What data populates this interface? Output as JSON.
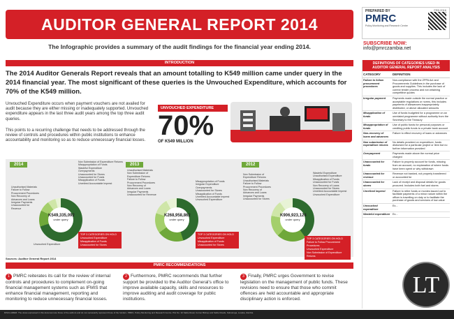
{
  "header": {
    "title": "AUDITOR GENERAL REPORT 2014 INFOGRAPHIC",
    "subtitle": "The Infographic provides a summary of the audit findings for the financial year ending 2014."
  },
  "logo": {
    "prepared_by": "PREPARED BY",
    "name": "PMRC",
    "sub": "Policy Monitoring and Research Centre",
    "date": "FEB 2016"
  },
  "subscribe": {
    "label": "SUBSCRIBE NOW:",
    "email": "info@pmrczambia.net"
  },
  "intro": {
    "heading": "INTRODUCTION",
    "lead": "The 2014 Auditor Generals Report reveals that an amount totalling to K549 million came under query in the 2014 financial year. The most significant of these queries is the Unvouched Expenditure, which accounts for 70% of the K549 million.",
    "para1": "Unvouched Expenditure occurs when payment vouchers are not availed for audit because they are either missing or inadequately supported. Unvouched expenditure appears in the last three audit years among the top three audit queries.",
    "para2": "This points to a recurring challenge that needs to be addressed through the review of controls and procedures within public institutions to enhance accountability and monitoring so as to reduce unnecessary financial losses."
  },
  "highlight": {
    "label": "UNVOUCHED EXPENDITURE",
    "percent": "70%",
    "of": "OF K549 MILLION"
  },
  "charts": [
    {
      "year": "2014",
      "total": "K549,335,092",
      "caption": "under query",
      "labels": [
        "Non Submission of Expenditure Returns",
        "Misappropriation of Funds",
        "Wasteful Expenditure",
        "Overpayments",
        "Unaccounted for Stores",
        "Unaccounted for Funds",
        "Misapplication of Funds",
        "Unretired Accountable Imprest",
        "Unvouched Expenditure",
        "Unauthorised Materials",
        "Failure to Follow Procurement Procedures",
        "Non Recovery of Advances and Loans",
        "Irregular Payments",
        "Unaccounted for Revenue"
      ],
      "legend": [
        "TOP 3 CATEGORIES ON HOLD",
        "Unvouched Expenditure",
        "Misapplication of Funds",
        "Unaccounted for Stores"
      ]
    },
    {
      "year": "2013",
      "total": "K268,958,862",
      "caption": "under query",
      "labels": [
        "Misappropriation of Funds",
        "Irregular Expenditure",
        "Overpayments",
        "Unaccounted for Stores",
        "Misapplication of Funds",
        "Unretired Accountable Imprest",
        "Unvouched Expenditure",
        "Unauthorised Materials",
        "Non Submission of Expenditure Returns",
        "Failure to Follow Procurement Procedures",
        "Non Recovery of Advances and Loans",
        "Irregular Payments",
        "Unaccounted for Revenue"
      ],
      "legend": [
        "TOP 3 CATEGORIES ON HOLD",
        "Unvouched Expenditure",
        "Misapplication of Funds",
        "Unaccounted for Stores"
      ]
    },
    {
      "year": "2012",
      "total": "K906,923,124",
      "caption": "under query",
      "labels": [
        "Wasteful Expenditure",
        "Unauthorised Expenditure",
        "Misapplication of Funds",
        "Unaccounted for Funds",
        "Non Recovery of Loans",
        "Unaccounted for Stores",
        "Unretired Accountable Imprest",
        "Unvouched Expenditure",
        "Non Submission of Expenditure Returns",
        "Unauthorised Materials",
        "Failure to Follow Procurement Procedures",
        "Non Recovery of Advances and Loans",
        "Irregular Payments",
        "Unaccounted for Stores"
      ],
      "legend": [
        "TOP 3 CATEGORIES ON HOLD",
        "Failure to Follow Procurement Procedures",
        "Unvouched Expenditure",
        "Non Submission of Expenditure Returns"
      ]
    }
  ],
  "sources": "Sources: Auditor General Report 2014",
  "recommendations": {
    "heading": "PMRC RECOMMENDATIONS",
    "items": [
      "PMRC reiterates its call for the review of internal controls and procedures to complement on-going financial management systems such as IFMIS that enhance financial management, reporting and monitoring to reduce unnecessary financial losses.",
      "Furthermore, PMRC recommends that further support be provided to the Auditor General's office to improve available capacity, skills and resources to improve auditing and audit coverage for public institutions.",
      "Finally, PMRC urges Government to revise legislation on the management of public funds. These revisions need to ensure that those who commit offences are held accountable and appropriate disciplinary action is enforced."
    ]
  },
  "definitions": {
    "heading": "DEFINITIONS OF CATEGORIES USED IN AUDITOR GENERAL REPORT ANALYSIS",
    "col1": "CATEGORY",
    "col2": "DEFINITION",
    "rows": [
      {
        "term": "Failure to follow procurement procedures",
        "def": "Non-compliance with the ZPPA Act and Procurements Guidelines in the purchase of goods and supplies. This includes the lack of correct tender process and not obtaining competitive quotes"
      },
      {
        "term": "Irregular payment",
        "def": "Payments made outside the normal practice or acceptable regulations or norms, this includes payments of allowances inappropriately distributed, or above allocated amounts"
      },
      {
        "term": "Misapplication of funds",
        "def": "Use of funds budgeted for a programme on an unrelated programme without authority from the Secretary to the Treasury"
      },
      {
        "term": "Misappropriation of funds",
        "def": "Use of public funds for personal purposes or crediting public funds to a private bank account"
      },
      {
        "term": "Non-recovery of loans and advances",
        "def": "Failure to effect recovery of loans or advances"
      },
      {
        "term": "Non submission of expenditure returns",
        "def": "No details provided on expenditure, funds disbursed for a particular project or item but no further information provided"
      },
      {
        "term": "Overpayment",
        "def": "Payments made above the normal price charged"
      },
      {
        "term": "Unaccounted for funds",
        "def": "Failure to properly account for funds, missing from an account, no explanation of where funds have been spent or why withdrawn"
      },
      {
        "term": "Unaccounted for revenue",
        "def": "Revenue not banked, not properly transferred or accounted for"
      },
      {
        "term": "Unaccounted for stores",
        "def": "Lack of receipt and disposal details for goods procured. Includes both fuel and stores"
      },
      {
        "term": "Unretired imprest",
        "def": "Failure to retire funds or monies issued out to facilitate payments of a minor nature within the officer is travelling on duty or to facilitate the purchase of goods and services of low value"
      },
      {
        "term": "Unvouched expenditure",
        "def": "Ex..."
      },
      {
        "term": "Wasteful expenditure",
        "def": "Ex..."
      }
    ]
  },
  "watermark": "LT",
  "footer": "DISCLAIMER: The views expressed in this document are those of the authors and do not necessarily represent those of the funders. PMRC, Policy Monitoring and Research Centre. Plot No. 32 Sable Road, Corner Bishop and Sable Roads, Kabulonga, Lusaka, Zambia."
}
